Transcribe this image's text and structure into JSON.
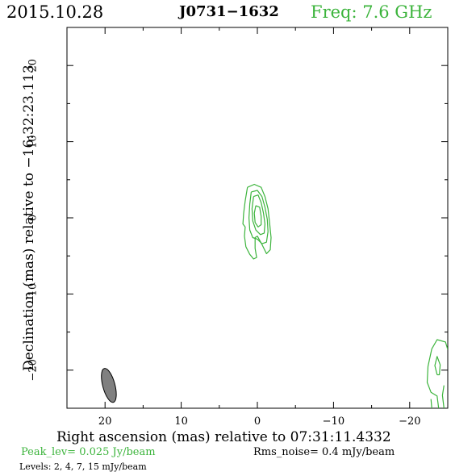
{
  "header": {
    "date": "2015.10.28",
    "source": "J0731−1632",
    "freq": "Freq: 7.6 GHz"
  },
  "colors": {
    "contour": "#3cb43c",
    "beam_fill": "#808080",
    "axes": "#000000"
  },
  "footer": {
    "peak": "Peak_lev=  0.025 Jy/beam",
    "rms": "Rms_noise=  0.4 mJy/beam",
    "levels": "Levels:   2,   4,   7,   15 mJy/beam"
  },
  "chart_data": {
    "type": "contour",
    "xlabel": "Right ascension (mas) relative to 07:31:11.4332",
    "ylabel": "Declination (mas) relative to −16:32:23.113",
    "xlim": [
      25,
      -25
    ],
    "ylim": [
      -25,
      25
    ],
    "x_ticks": [
      {
        "value": 20,
        "label": "20"
      },
      {
        "value": 10,
        "label": "10"
      },
      {
        "value": 0,
        "label": "0"
      },
      {
        "value": -10,
        "label": "−10"
      },
      {
        "value": -20,
        "label": "−20"
      }
    ],
    "y_ticks": [
      {
        "value": 20,
        "label": "20"
      },
      {
        "value": 10,
        "label": "10"
      },
      {
        "value": 0,
        "label": "0"
      },
      {
        "value": -10,
        "label": "−10"
      },
      {
        "value": -20,
        "label": "−20"
      }
    ],
    "levels_mJy": [
      2,
      4,
      7,
      15
    ],
    "beam": {
      "center": [
        19.5,
        -22
      ],
      "major": 4.6,
      "minor": 1.6,
      "pa_deg": 15
    },
    "contours": [
      {
        "level": 2,
        "points": [
          [
            1.3,
            4.0
          ],
          [
            0.4,
            4.4
          ],
          [
            -0.5,
            4.0
          ],
          [
            -1.0,
            2.8
          ],
          [
            -1.4,
            1.2
          ],
          [
            -1.6,
            -0.6
          ],
          [
            -1.8,
            -2.6
          ],
          [
            -1.7,
            -4.2
          ],
          [
            -1.2,
            -4.7
          ],
          [
            -0.6,
            -3.5
          ],
          [
            0.0,
            -2.4
          ],
          [
            0.3,
            -2.6
          ],
          [
            0.3,
            -4.0
          ],
          [
            0.1,
            -5.2
          ],
          [
            0.5,
            -5.4
          ],
          [
            1.0,
            -4.8
          ],
          [
            1.5,
            -3.8
          ],
          [
            1.7,
            -2.4
          ],
          [
            1.6,
            -1.2
          ],
          [
            1.9,
            -0.8
          ],
          [
            1.8,
            0.6
          ],
          [
            1.6,
            2.2
          ],
          [
            1.3,
            4.0
          ]
        ]
      },
      {
        "level": 4,
        "points": [
          [
            0.8,
            3.4
          ],
          [
            0.0,
            3.6
          ],
          [
            -0.6,
            2.8
          ],
          [
            -1.0,
            1.4
          ],
          [
            -1.3,
            -0.2
          ],
          [
            -1.4,
            -1.8
          ],
          [
            -1.2,
            -3.2
          ],
          [
            -0.6,
            -3.4
          ],
          [
            0.0,
            -2.8
          ],
          [
            0.6,
            -2.6
          ],
          [
            1.0,
            -1.6
          ],
          [
            1.1,
            0.0
          ],
          [
            1.0,
            1.8
          ],
          [
            0.8,
            3.4
          ]
        ]
      },
      {
        "level": 7,
        "points": [
          [
            0.5,
            2.8
          ],
          [
            -0.1,
            3.0
          ],
          [
            -0.5,
            2.0
          ],
          [
            -0.8,
            0.6
          ],
          [
            -1.0,
            -0.8
          ],
          [
            -0.9,
            -2.0
          ],
          [
            -0.4,
            -2.2
          ],
          [
            0.2,
            -1.6
          ],
          [
            0.6,
            -0.4
          ],
          [
            0.7,
            1.2
          ],
          [
            0.5,
            2.8
          ]
        ]
      },
      {
        "level": 15,
        "points": [
          [
            0.2,
            1.6
          ],
          [
            -0.3,
            1.4
          ],
          [
            -0.5,
            0.2
          ],
          [
            -0.5,
            -0.9
          ],
          [
            -0.1,
            -1.2
          ],
          [
            0.3,
            -0.6
          ],
          [
            0.4,
            0.6
          ],
          [
            0.2,
            1.6
          ]
        ]
      },
      {
        "level": 2,
        "points": [
          [
            -23.8,
            -25.0
          ],
          [
            -23.6,
            -23.4
          ],
          [
            -22.8,
            -22.9
          ],
          [
            -22.3,
            -21.6
          ],
          [
            -22.4,
            -19.5
          ],
          [
            -22.9,
            -17.2
          ],
          [
            -23.6,
            -16.0
          ],
          [
            -24.7,
            -16.3
          ],
          [
            -25.0,
            -17.3
          ]
        ]
      },
      {
        "level": 4,
        "points": [
          [
            -24.5,
            -25.0
          ],
          [
            -24.3,
            -23.3
          ],
          [
            -24.5,
            -22.0
          ]
        ]
      },
      {
        "level": 4,
        "points": [
          [
            -23.6,
            -20.6
          ],
          [
            -23.3,
            -19.4
          ],
          [
            -23.6,
            -18.2
          ],
          [
            -24.0,
            -19.3
          ],
          [
            -23.9,
            -20.6
          ],
          [
            -23.6,
            -20.6
          ]
        ]
      },
      {
        "level": 2,
        "points": [
          [
            -22.9,
            -25.0
          ],
          [
            -22.8,
            -23.8
          ]
        ]
      }
    ]
  }
}
